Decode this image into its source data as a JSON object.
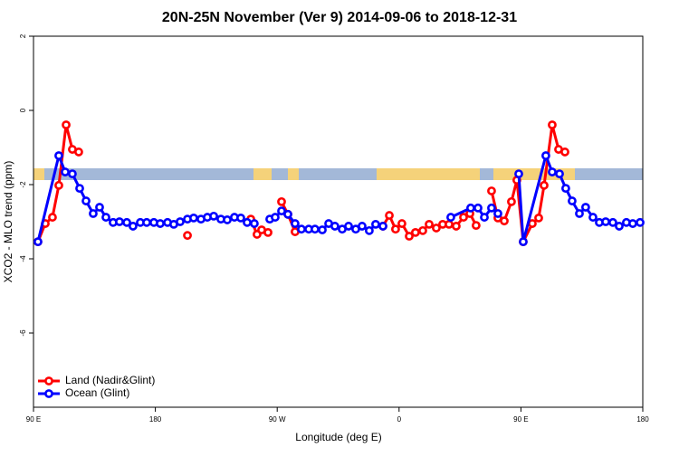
{
  "chart_data": {
    "type": "line",
    "title": "20N-25N November (Ver 9)   2014-09-06 to 2018-12-31",
    "x_label": "Longitude (deg E)",
    "y_label": "XCO2 - MLO trend (ppm)",
    "xlim": [
      90,
      540
    ],
    "xticks": [
      {
        "value": 90,
        "label": "90 E"
      },
      {
        "value": 180,
        "label": "180"
      },
      {
        "value": 270,
        "label": "90 W"
      },
      {
        "value": 360,
        "label": "0"
      },
      {
        "value": 450,
        "label": "90 E"
      },
      {
        "value": 540,
        "label": "180"
      }
    ],
    "ylim": [
      -8,
      2
    ],
    "yticks": [
      2,
      0,
      -2,
      -4,
      -6
    ],
    "legend": "bottomleft",
    "series": [
      {
        "name": "Land (Nadir&Glint)",
        "color": "#ff0000",
        "x": [
          93.3,
          98.7,
          104.0,
          108.7,
          114.1,
          118.7,
          123.4,
          160,
          203.7,
          230,
          250.5,
          255.1,
          258.5,
          263.2,
          268,
          273.2,
          277.9,
          283.2,
          320,
          348.1,
          352.8,
          357.4,
          362.1,
          367.5,
          372.1,
          377.5,
          382.2,
          387.5,
          392.2,
          396.9,
          402.2,
          407.6,
          412.3,
          416.9,
          422,
          428.3,
          433.0,
          437.7,
          443.0,
          447.0,
          451.7,
          458.4,
          463.1,
          467.1,
          473.1,
          477.8,
          482.5
        ],
        "values": [
          -3.54,
          -3.05,
          -2.88,
          -2.02,
          -0.39,
          -1.05,
          -1.12,
          null,
          -3.37,
          null,
          -2.93,
          -3.34,
          -3.22,
          -3.29,
          null,
          -2.46,
          -2.8,
          -3.27,
          null,
          -3.12,
          -2.83,
          -3.2,
          -3.05,
          -3.39,
          -3.29,
          -3.24,
          -3.07,
          -3.17,
          -3.07,
          -3.07,
          -3.12,
          -2.88,
          -2.78,
          -3.1,
          null,
          -2.17,
          -2.9,
          -2.98,
          -2.46,
          -1.88,
          -3.54,
          -3.05,
          -2.9,
          -2.02,
          -0.39,
          -1.05,
          -1.12
        ]
      },
      {
        "name": "Ocean (Glint)",
        "color": "#0000ff",
        "x": [
          93.3,
          108.7,
          113.4,
          118.7,
          124.1,
          128.8,
          134.1,
          138.8,
          143.5,
          148.8,
          153.5,
          158.9,
          163.5,
          168.9,
          173.6,
          178.9,
          183.6,
          189.0,
          193.6,
          198.3,
          203.7,
          208.3,
          213.7,
          218.4,
          223.1,
          228.4,
          233.1,
          238.4,
          243.1,
          247.8,
          253.1,
          259,
          264.5,
          268.5,
          273.2,
          277.9,
          283.2,
          287.9,
          293.3,
          297.9,
          303.3,
          308.0,
          312.6,
          318.0,
          322.7,
          328.0,
          332.7,
          338.0,
          342.7,
          348.1,
          370,
          398.2,
          412.9,
          418.3,
          423.0,
          428.3,
          433.0,
          440,
          448.4,
          451.7,
          468.4,
          473.1,
          478.5,
          483.1,
          487.8,
          493.2,
          497.8,
          503.2,
          507.9,
          512.6,
          517.9,
          522.6,
          527.9,
          532.6,
          538.0
        ],
        "values": [
          -3.54,
          -1.22,
          -1.66,
          -1.71,
          -2.1,
          -2.44,
          -2.78,
          -2.61,
          -2.88,
          -3.02,
          -3.0,
          -3.02,
          -3.12,
          -3.02,
          -3.02,
          -3.02,
          -3.05,
          -3.02,
          -3.07,
          -3.0,
          -2.93,
          -2.9,
          -2.93,
          -2.88,
          -2.85,
          -2.93,
          -2.95,
          -2.88,
          -2.9,
          -3.02,
          -3.05,
          null,
          -2.93,
          -2.88,
          -2.71,
          -2.8,
          -3.05,
          -3.2,
          -3.2,
          -3.2,
          -3.22,
          -3.05,
          -3.12,
          -3.2,
          -3.12,
          -3.2,
          -3.12,
          -3.24,
          -3.07,
          -3.12,
          null,
          -2.88,
          -2.63,
          -2.63,
          -2.88,
          -2.63,
          -2.78,
          null,
          -1.71,
          -3.54,
          -1.22,
          -1.66,
          -1.71,
          -2.1,
          -2.44,
          -2.78,
          -2.61,
          -2.88,
          -3.02,
          -3.0,
          -3.02,
          -3.12,
          -3.02,
          -3.05,
          -3.02
        ]
      }
    ]
  }
}
